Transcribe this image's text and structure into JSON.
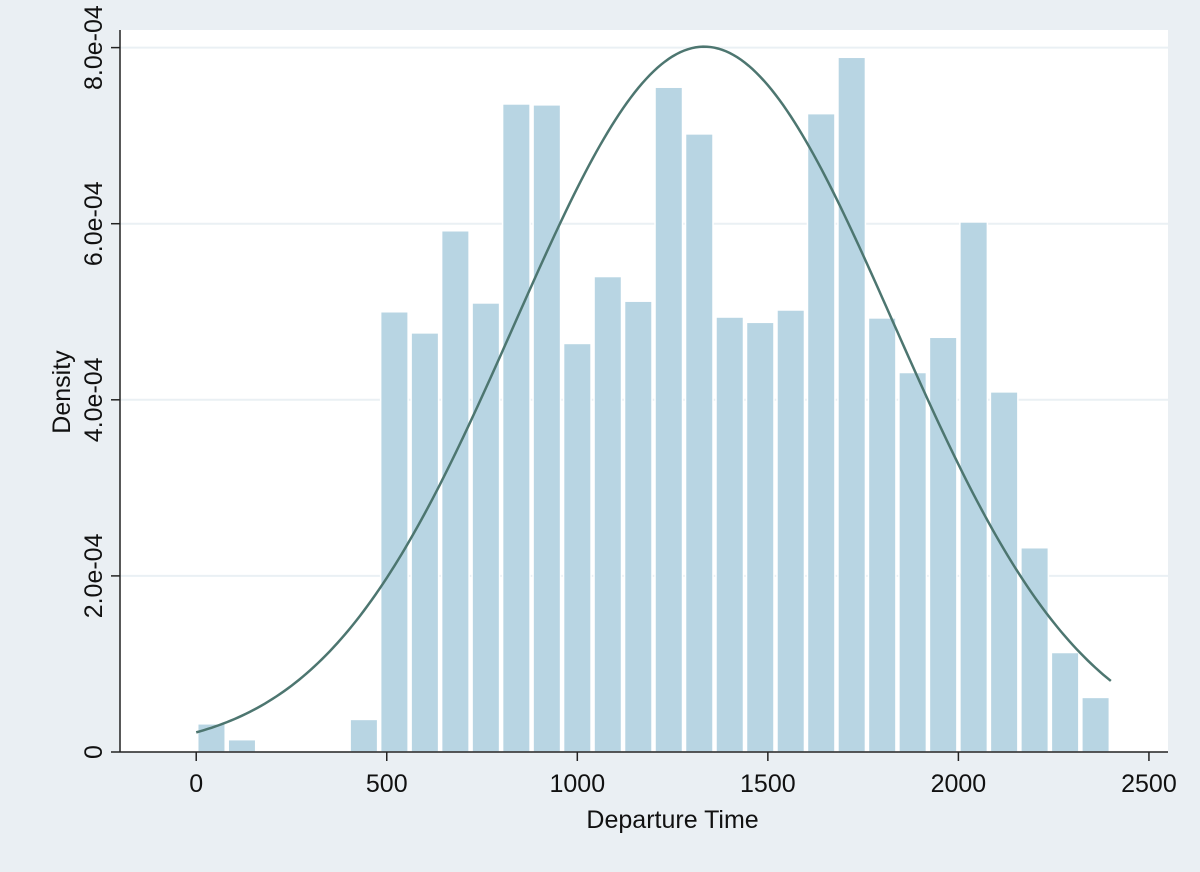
{
  "colors": {
    "background": "#eaeff3",
    "plot_background": "#ffffff",
    "grid": "#eaf0f4",
    "bar_fill": "#b8d5e3",
    "bar_edge": "#ffffff",
    "curve": "#4d7670",
    "axis": "#222222",
    "text": "#111111"
  },
  "chart_data": {
    "type": "bar",
    "subtype": "histogram",
    "xlabel": "Departure Time",
    "ylabel": "Density",
    "xlim": [
      -200,
      2550
    ],
    "ylim": [
      0,
      0.00082
    ],
    "xticks": [
      0,
      500,
      1000,
      1500,
      2000,
      2500
    ],
    "xtick_labels": [
      "0",
      "500",
      "1000",
      "1500",
      "2000",
      "2500"
    ],
    "yticks": [
      0,
      0.0002,
      0.0004,
      0.0006,
      0.0008
    ],
    "ytick_labels": [
      "0",
      "2.0e-04",
      "4.0e-04",
      "6.0e-04",
      "8.0e-04"
    ],
    "grid": true,
    "bin_width": 80,
    "bin_edges": [
      0,
      80,
      160,
      240,
      320,
      400,
      480,
      560,
      640,
      720,
      800,
      880,
      960,
      1040,
      1120,
      1200,
      1280,
      1360,
      1440,
      1520,
      1600,
      1680,
      1760,
      1840,
      1920,
      2000,
      2080,
      2160,
      2240,
      2320,
      2400
    ],
    "densities": [
      3.2e-05,
      1.4e-05,
      0,
      0,
      0,
      3.7e-05,
      0.0005,
      0.000476,
      0.000592,
      0.00051,
      0.000736,
      0.000735,
      0.000464,
      0.00054,
      0.000512,
      0.000755,
      0.000702,
      0.000494,
      0.000488,
      0.000502,
      0.000725,
      0.000789,
      0.000493,
      0.000431,
      0.000471,
      0.000602,
      0.000409,
      0.000232,
      0.000113,
      6.2e-05
    ],
    "overlay": {
      "type": "normal_density_curve",
      "mean": 1333,
      "sd": 498,
      "x_range": [
        0,
        2400
      ]
    }
  }
}
